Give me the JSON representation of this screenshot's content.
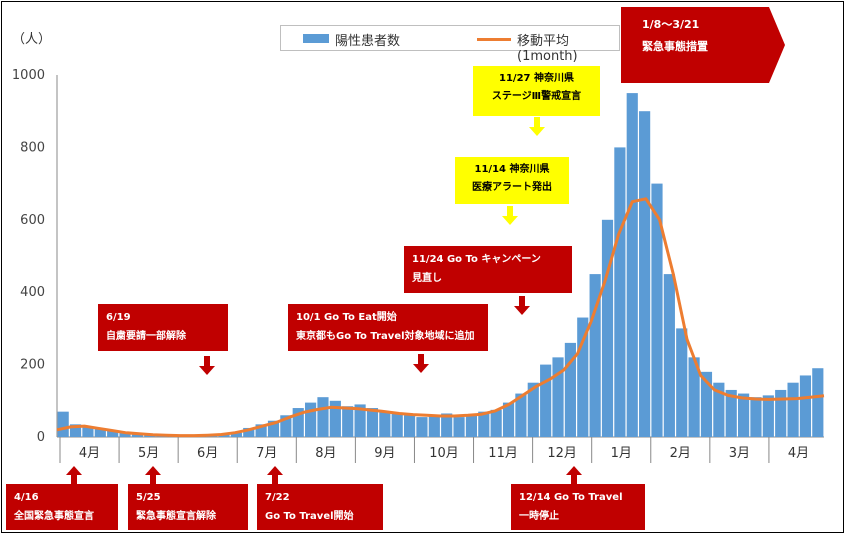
{
  "y_unit_label": "（人）",
  "colors": {
    "bars": "#5b9bd5",
    "line": "#ed7d31",
    "annotation_red": "#c00000",
    "annotation_yellow": "#ffff00"
  },
  "legend": {
    "bars": "陽性患者数",
    "line": "移動平均(1month)"
  },
  "banner": "1/8～3/21\n緊急事態措置",
  "annotations_above": [
    {
      "id": "a619",
      "text": "6/19\n自粛要請一部解除"
    },
    {
      "id": "a101",
      "text": "10/1  Go To Eat開始\n東京都もGo To Travel対象地域に追加"
    },
    {
      "id": "a1124",
      "text": "11/24  Go To キャンペーン\n見直し"
    }
  ],
  "annotations_yellow": [
    {
      "id": "y1127",
      "text": "11/27  神奈川県\nステージⅢ警戒宣言"
    },
    {
      "id": "y1114",
      "text": "11/14  神奈川県\n医療アラート発出"
    }
  ],
  "annotations_below": [
    {
      "id": "b416",
      "text": "4/16\n全国緊急事態宣言"
    },
    {
      "id": "b525",
      "text": "5/25\n緊急事態宣言解除"
    },
    {
      "id": "b722",
      "text": "7/22\nGo To Travel開始"
    },
    {
      "id": "b1214",
      "text": "12/14  Go To Travel\n一時停止"
    }
  ],
  "chart_data": {
    "type": "bar",
    "ylim": [
      0,
      1000
    ],
    "yticks": [
      0,
      200,
      400,
      600,
      800,
      1000
    ],
    "grid": false,
    "legend_position": "top",
    "months": [
      "4月",
      "5月",
      "6月",
      "7月",
      "8月",
      "9月",
      "10月",
      "11月",
      "12月",
      "1月",
      "2月",
      "3月",
      "4月"
    ],
    "series": [
      {
        "name": "陽性患者数",
        "type": "bar",
        "sampling": "weekly peaks (estimated)",
        "values": [
          70,
          35,
          28,
          22,
          18,
          12,
          10,
          5,
          4,
          3,
          2,
          3,
          5,
          8,
          12,
          25,
          35,
          45,
          60,
          80,
          95,
          110,
          100,
          85,
          90,
          80,
          70,
          65,
          60,
          55,
          60,
          65,
          55,
          60,
          70,
          75,
          95,
          120,
          150,
          200,
          220,
          260,
          330,
          450,
          600,
          800,
          950,
          900,
          700,
          450,
          300,
          220,
          180,
          150,
          130,
          120,
          110,
          115,
          130,
          150,
          170,
          190
        ]
      },
      {
        "name": "移動平均(1month)",
        "type": "line",
        "sampling": "weekly (estimated)",
        "values": [
          20,
          28,
          30,
          24,
          18,
          12,
          9,
          6,
          5,
          4,
          4,
          5,
          7,
          12,
          20,
          30,
          40,
          55,
          68,
          76,
          82,
          80,
          78,
          74,
          70,
          65,
          62,
          60,
          58,
          58,
          60,
          63,
          72,
          90,
          115,
          140,
          160,
          185,
          230,
          320,
          430,
          560,
          650,
          658,
          600,
          450,
          270,
          170,
          130,
          115,
          108,
          105,
          104,
          105,
          106,
          110,
          114
        ]
      }
    ]
  }
}
